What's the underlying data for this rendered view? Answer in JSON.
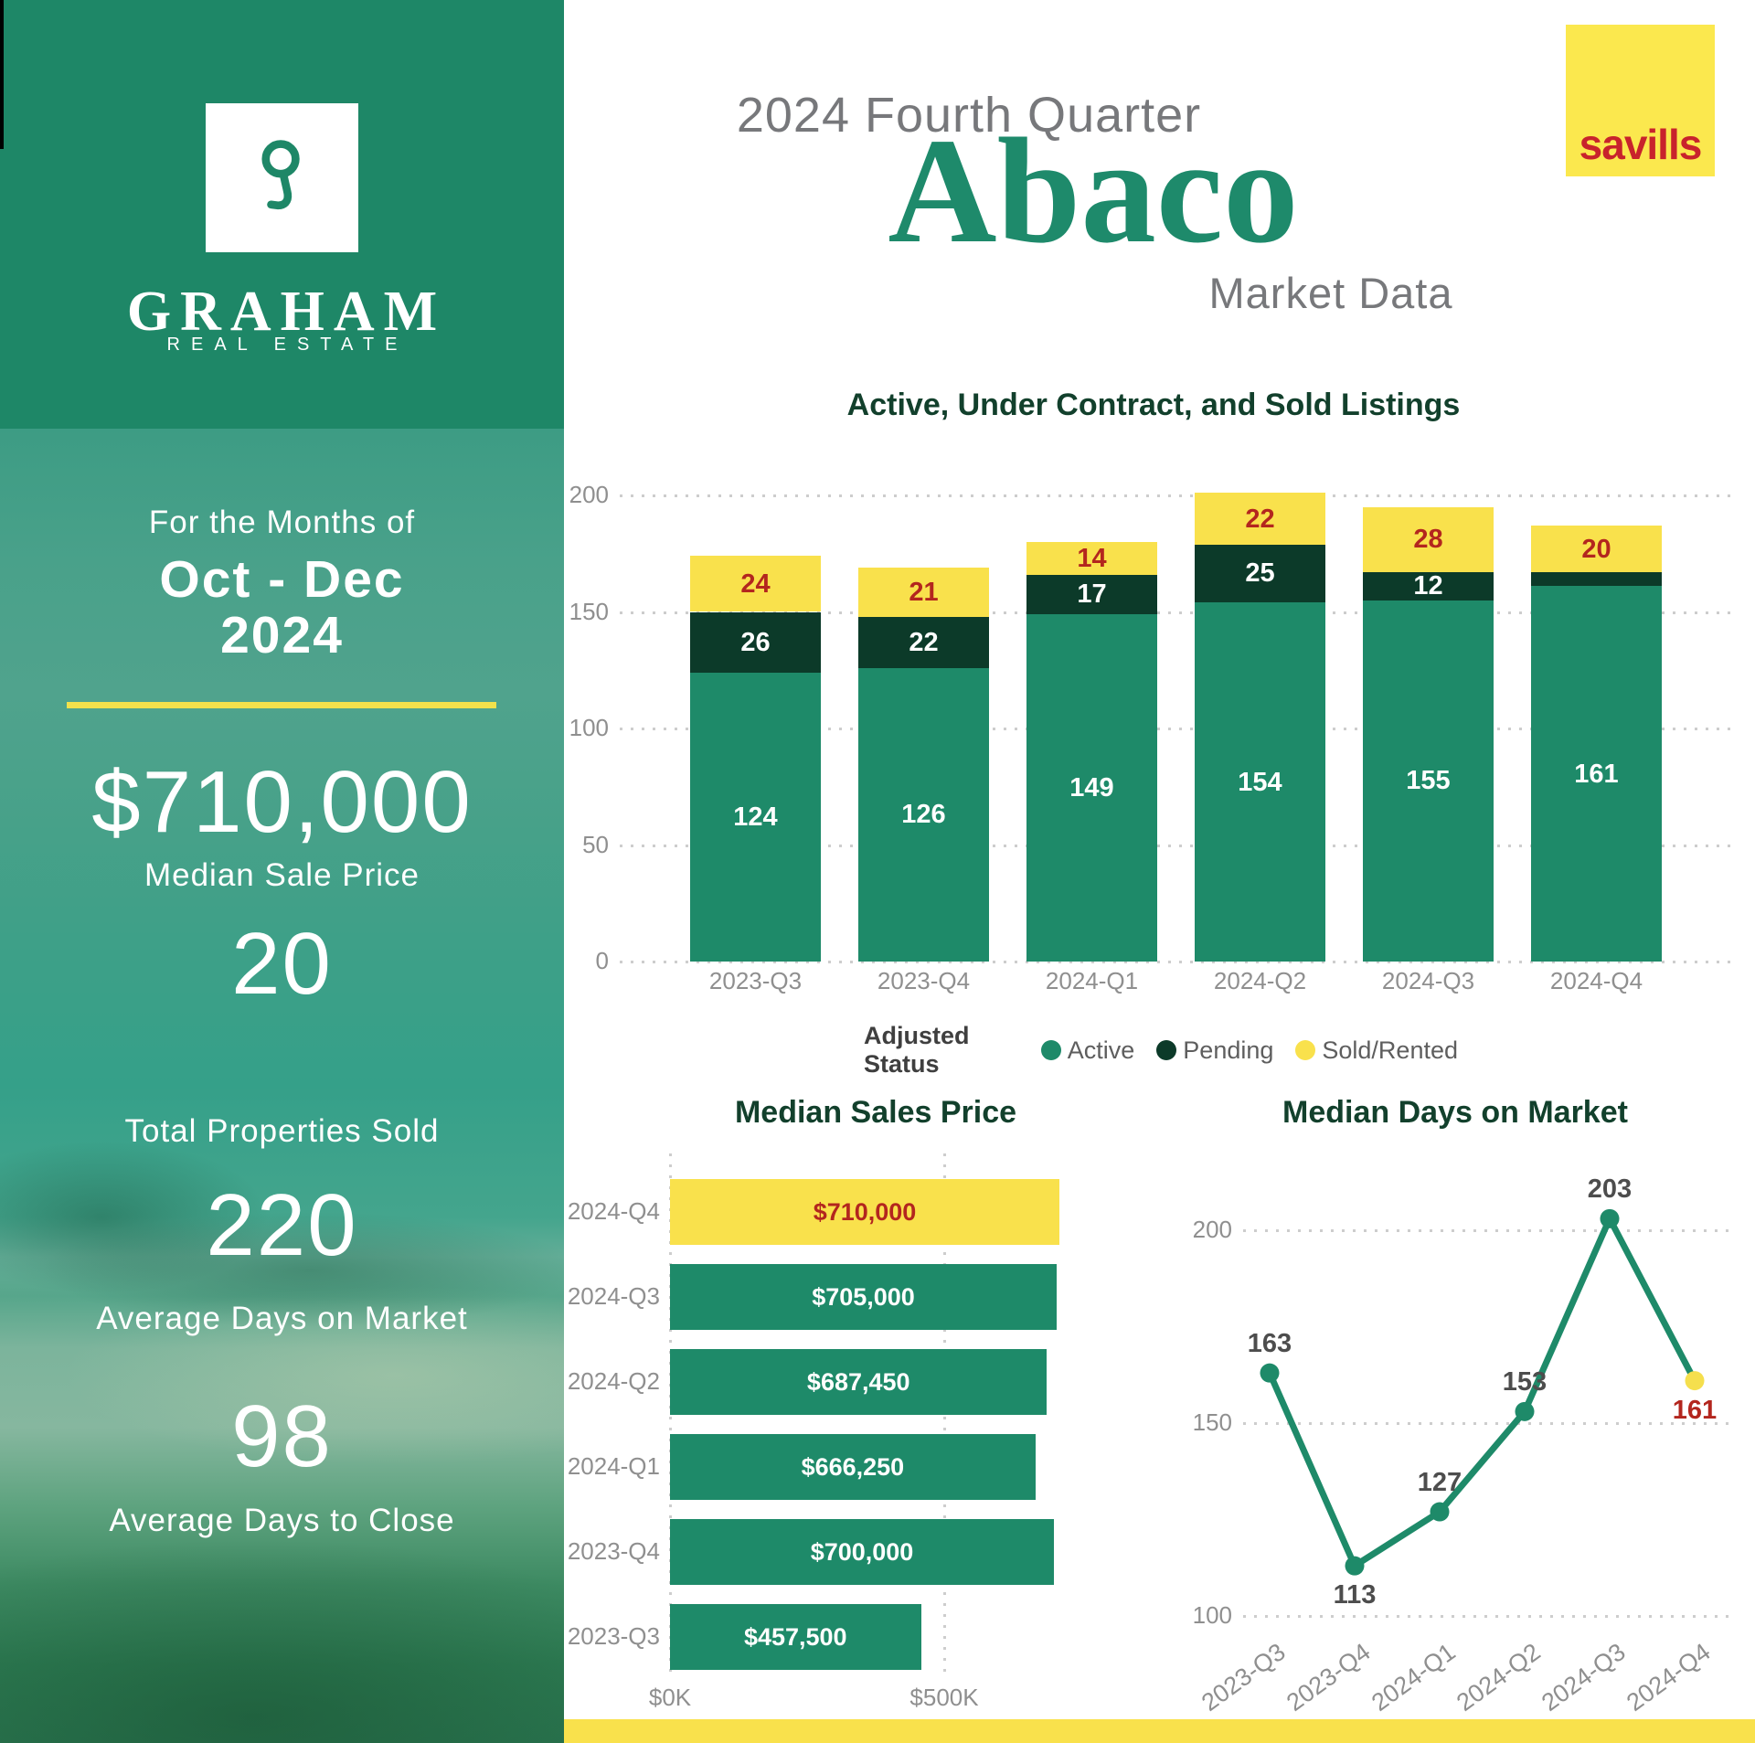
{
  "header": {
    "eyebrow": "2024 Fourth Quarter",
    "title": "Abaco",
    "subtitle": "Market Data",
    "partner_logo": "savills"
  },
  "sidebar": {
    "logo_icon": "keyhole-icon",
    "brand_name": "GRAHAM",
    "brand_tagline": "REAL ESTATE",
    "period_intro": "For the Months of",
    "period_range": "Oct - Dec",
    "period_year": "2024",
    "stats": [
      {
        "value": "$710,000",
        "label": "Median Sale Price"
      },
      {
        "value": "20",
        "label": "Total Properties Sold"
      },
      {
        "value": "220",
        "label": "Average Days on Market"
      },
      {
        "value": "98",
        "label": "Average Days to Close"
      }
    ]
  },
  "colors": {
    "brand_green": "#1E8767",
    "active_green": "#1E8A69",
    "pending_dark_green": "#0C3A29",
    "accent_yellow": "#F9E14C",
    "savills_yellow": "#FBE84E",
    "savills_red": "#C8232C",
    "value_red": "#B3261E",
    "title_dark_green": "#12402C",
    "axis_gray": "#8F8F8F",
    "header_gray": "#77787B"
  },
  "chart_data": [
    {
      "id": "listings",
      "type": "bar",
      "subtype": "stacked-column",
      "title": "Active, Under Contract, and Sold Listings",
      "categories": [
        "2023-Q3",
        "2023-Q4",
        "2024-Q1",
        "2024-Q2",
        "2024-Q3",
        "2024-Q4"
      ],
      "series": [
        {
          "name": "Active",
          "color": "#1E8A69",
          "label_color": "#FFFFFF",
          "values": [
            124,
            126,
            149,
            154,
            155,
            161
          ]
        },
        {
          "name": "Pending",
          "color": "#0C3A29",
          "label_color": "#FFFFFF",
          "values": [
            26,
            22,
            17,
            25,
            12,
            6
          ],
          "note": "2024-Q4 pending segment is too small to show a printed label; value estimated from bar height"
        },
        {
          "name": "Sold/Rented",
          "color": "#F9E14C",
          "label_color": "#B3261E",
          "values": [
            24,
            21,
            14,
            22,
            28,
            20
          ]
        }
      ],
      "legend_title": "Adjusted Status",
      "legend_position": "bottom",
      "ylim": [
        0,
        200
      ],
      "yticks": [
        0,
        50,
        100,
        150,
        200
      ],
      "grid": "dotted-horizontal"
    },
    {
      "id": "median-sales-price",
      "type": "bar",
      "subtype": "horizontal",
      "title": "Median Sales Price",
      "categories": [
        "2024-Q4",
        "2024-Q3",
        "2024-Q2",
        "2024-Q1",
        "2023-Q4",
        "2023-Q3"
      ],
      "values": [
        710000,
        705000,
        687450,
        666250,
        700000,
        457500
      ],
      "value_labels": [
        "$710,000",
        "$705,000",
        "$687,450",
        "$666,250",
        "$700,000",
        "$457,500"
      ],
      "bar_colors": [
        "#F9E14C",
        "#1E8A69",
        "#1E8A69",
        "#1E8A69",
        "#1E8A69",
        "#1E8A69"
      ],
      "value_label_colors": [
        "#B3261E",
        "#FFFFFF",
        "#FFFFFF",
        "#FFFFFF",
        "#FFFFFF",
        "#FFFFFF"
      ],
      "xticks": [
        {
          "label": "$0K",
          "value": 0
        },
        {
          "label": "$500K",
          "value": 500000
        }
      ],
      "grid": "dotted-vertical"
    },
    {
      "id": "median-days-on-market",
      "type": "line",
      "title": "Median Days on Market",
      "categories": [
        "2023-Q3",
        "2023-Q4",
        "2024-Q1",
        "2024-Q2",
        "2024-Q3",
        "2024-Q4"
      ],
      "values": [
        163,
        113,
        127,
        153,
        203,
        161
      ],
      "line_color": "#1E8A69",
      "point_colors": [
        "#1E8A69",
        "#1E8A69",
        "#1E8A69",
        "#1E8A69",
        "#1E8A69",
        "#F5DF4D"
      ],
      "label_colors": [
        "#4D4D4D",
        "#4D4D4D",
        "#4D4D4D",
        "#4D4D4D",
        "#4D4D4D",
        "#B3261E"
      ],
      "label_positions": [
        "above",
        "below",
        "above",
        "above",
        "above",
        "below"
      ],
      "ylim": [
        100,
        210
      ],
      "yticks": [
        200,
        150,
        100
      ],
      "grid": "dotted-horizontal",
      "x_label_rotation": -36
    }
  ]
}
